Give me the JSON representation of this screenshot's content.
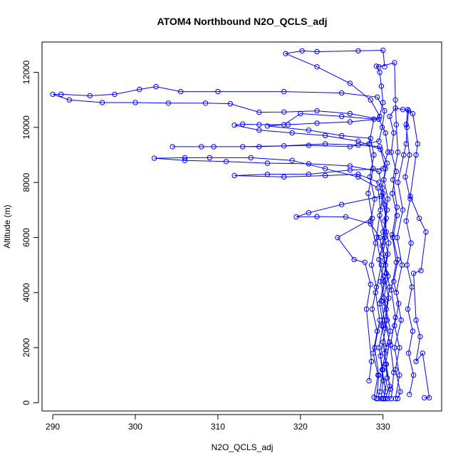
{
  "chart_data": {
    "type": "line",
    "title": "ATOM4 Northbound N2O_QCLS_adj",
    "xlabel": "N2O_QCLS_adj",
    "ylabel": "Altitude (m)",
    "xlim": [
      288.7,
      337.1
    ],
    "ylim": [
      -300,
      13100
    ],
    "x_ticks": [
      290,
      300,
      310,
      320,
      330
    ],
    "y_ticks": [
      0,
      2000,
      4000,
      6000,
      8000,
      10000,
      12000
    ],
    "grid": false,
    "legend": "none",
    "series_style": "points connected by lines",
    "color": "#0000ff",
    "series": [
      {
        "points": [
          [
            330.1,
            150
          ],
          [
            330.5,
            900
          ],
          [
            330.2,
            1800
          ],
          [
            330.9,
            2600
          ],
          [
            330.4,
            3400
          ],
          [
            330.8,
            4200
          ],
          [
            330.3,
            5000
          ],
          [
            330.7,
            5800
          ],
          [
            330.2,
            6600
          ],
          [
            330.6,
            7400
          ],
          [
            330.1,
            8100
          ],
          [
            330.5,
            8700
          ],
          [
            329.6,
            9300
          ],
          [
            327.0,
            9360
          ],
          [
            323.0,
            9400
          ],
          [
            318.0,
            9330
          ],
          [
            313.0,
            9300
          ],
          [
            308.0,
            9300
          ],
          [
            304.5,
            9300
          ],
          [
            309.5,
            9300
          ],
          [
            315.0,
            9300
          ],
          [
            321.0,
            9350
          ],
          [
            326.0,
            9300
          ],
          [
            329.5,
            9500
          ],
          [
            329.9,
            10000
          ],
          [
            330.2,
            10600
          ],
          [
            329.3,
            11100
          ],
          [
            325.0,
            11250
          ],
          [
            318.0,
            11300
          ],
          [
            310.0,
            11300
          ],
          [
            305.5,
            11300
          ],
          [
            302.5,
            11480
          ],
          [
            300.5,
            11380
          ],
          [
            297.5,
            11200
          ],
          [
            294.5,
            11150
          ],
          [
            291.0,
            11200
          ],
          [
            290.0,
            11200
          ],
          [
            292.0,
            11000
          ],
          [
            296.0,
            10900
          ],
          [
            300.0,
            10900
          ],
          [
            304.0,
            10880
          ],
          [
            308.5,
            10880
          ],
          [
            311.5,
            10860
          ],
          [
            315.0,
            10550
          ],
          [
            318.0,
            10560
          ],
          [
            322.0,
            10600
          ],
          [
            326.0,
            10500
          ],
          [
            329.5,
            10300
          ],
          [
            330.3,
            9800
          ],
          [
            330.6,
            9100
          ],
          [
            330.0,
            8500
          ],
          [
            326.0,
            8450
          ],
          [
            321.0,
            8300
          ],
          [
            316.0,
            8300
          ],
          [
            312.0,
            8250
          ],
          [
            318.0,
            8200
          ],
          [
            323.0,
            8250
          ],
          [
            327.0,
            8300
          ],
          [
            329.5,
            8000
          ],
          [
            330.2,
            7200
          ],
          [
            330.4,
            6200
          ],
          [
            330.0,
            5400
          ],
          [
            330.6,
            4600
          ],
          [
            330.1,
            3800
          ],
          [
            330.5,
            3000
          ],
          [
            330.0,
            2200
          ],
          [
            330.4,
            1400
          ],
          [
            330.8,
            600
          ],
          [
            330.3,
            150
          ]
        ]
      },
      {
        "points": [
          [
            329.2,
            150
          ],
          [
            329.5,
            1000
          ],
          [
            329.0,
            2000
          ],
          [
            329.6,
            3000
          ],
          [
            329.1,
            4000
          ],
          [
            329.8,
            5000
          ],
          [
            329.2,
            6000
          ],
          [
            329.7,
            7000
          ],
          [
            329.4,
            7800
          ],
          [
            327.0,
            8200
          ],
          [
            323.0,
            8500
          ],
          [
            319.0,
            8800
          ],
          [
            314.0,
            8900
          ],
          [
            309.0,
            8900
          ],
          [
            306.0,
            8900
          ],
          [
            302.3,
            8880
          ],
          [
            306.0,
            8800
          ],
          [
            311.0,
            8760
          ],
          [
            316.0,
            8700
          ],
          [
            321.0,
            8680
          ],
          [
            326.0,
            8600
          ],
          [
            329.5,
            8400
          ],
          [
            330.0,
            7600
          ],
          [
            329.6,
            6800
          ],
          [
            330.2,
            6000
          ],
          [
            329.5,
            5200
          ],
          [
            330.1,
            4400
          ],
          [
            329.6,
            3600
          ],
          [
            330.0,
            2800
          ],
          [
            329.5,
            2000
          ],
          [
            330.0,
            1200
          ],
          [
            329.6,
            400
          ],
          [
            329.4,
            150
          ]
        ]
      },
      {
        "points": [
          [
            331.0,
            150
          ],
          [
            331.3,
            1100
          ],
          [
            330.9,
            2100
          ],
          [
            331.5,
            3100
          ],
          [
            331.0,
            4100
          ],
          [
            331.6,
            5100
          ],
          [
            331.1,
            6100
          ],
          [
            331.7,
            7100
          ],
          [
            331.2,
            8100
          ],
          [
            331.8,
            9100
          ],
          [
            331.6,
            10100
          ],
          [
            331.5,
            11000
          ],
          [
            331.4,
            12350
          ],
          [
            329.5,
            12200
          ],
          [
            329.2,
            12220
          ],
          [
            329.6,
            12000
          ],
          [
            329.8,
            11500
          ],
          [
            330.0,
            10900
          ],
          [
            329.5,
            10300
          ],
          [
            326.0,
            10200
          ],
          [
            322.0,
            10150
          ],
          [
            318.5,
            10100
          ],
          [
            315.0,
            10100
          ],
          [
            313.0,
            10120
          ],
          [
            312.0,
            10080
          ],
          [
            315.0,
            9900
          ],
          [
            319.0,
            9800
          ],
          [
            323.0,
            9700
          ],
          [
            327.0,
            9500
          ],
          [
            329.7,
            9200
          ],
          [
            330.3,
            8500
          ],
          [
            329.9,
            7800
          ],
          [
            330.5,
            7000
          ],
          [
            330.0,
            6200
          ],
          [
            330.6,
            5400
          ],
          [
            330.1,
            4600
          ],
          [
            330.7,
            3800
          ],
          [
            330.2,
            3000
          ],
          [
            330.8,
            2200
          ],
          [
            330.3,
            1400
          ],
          [
            330.9,
            500
          ],
          [
            330.6,
            150
          ]
        ]
      },
      {
        "points": [
          [
            329.8,
            150
          ],
          [
            330.0,
            800
          ],
          [
            329.7,
            1700
          ],
          [
            330.3,
            2700
          ],
          [
            329.8,
            3700
          ],
          [
            330.4,
            4700
          ],
          [
            329.9,
            5700
          ],
          [
            330.4,
            6700
          ],
          [
            329.8,
            7500
          ],
          [
            325.0,
            7200
          ],
          [
            321.0,
            6900
          ],
          [
            319.5,
            6750
          ],
          [
            322.0,
            6760
          ],
          [
            325.5,
            6750
          ],
          [
            328.5,
            6500
          ],
          [
            329.6,
            6000
          ],
          [
            330.2,
            5200
          ],
          [
            329.7,
            4400
          ],
          [
            330.3,
            3600
          ],
          [
            329.8,
            2800
          ],
          [
            330.4,
            2000
          ],
          [
            329.9,
            1200
          ],
          [
            330.3,
            400
          ],
          [
            330.0,
            150
          ]
        ]
      },
      {
        "points": [
          [
            331.5,
            150
          ],
          [
            332.0,
            1000
          ],
          [
            331.4,
            2000
          ],
          [
            332.2,
            3000
          ],
          [
            331.6,
            4000
          ],
          [
            332.3,
            5000
          ],
          [
            331.7,
            6000
          ],
          [
            332.4,
            7000
          ],
          [
            331.8,
            8000
          ],
          [
            332.5,
            9000
          ],
          [
            332.8,
            9400
          ],
          [
            332.9,
            10000
          ],
          [
            333.1,
            10600
          ],
          [
            332.4,
            10650
          ],
          [
            331.5,
            10700
          ],
          [
            330.8,
            10400
          ],
          [
            331.3,
            9800
          ],
          [
            331.0,
            9100
          ],
          [
            331.6,
            8400
          ],
          [
            331.1,
            7600
          ],
          [
            331.7,
            6800
          ],
          [
            331.2,
            6000
          ],
          [
            331.8,
            5200
          ],
          [
            331.3,
            4400
          ],
          [
            331.9,
            3600
          ],
          [
            331.4,
            2800
          ],
          [
            332.0,
            2000
          ],
          [
            331.5,
            1200
          ],
          [
            332.1,
            400
          ],
          [
            331.8,
            150
          ]
        ]
      },
      {
        "points": [
          [
            335.0,
            180
          ],
          [
            335.6,
            180
          ],
          [
            334.8,
            1800
          ],
          [
            334.0,
            1500
          ],
          [
            334.5,
            2400
          ],
          [
            334.0,
            3000
          ],
          [
            333.7,
            4700
          ],
          [
            334.6,
            4800
          ],
          [
            335.2,
            6200
          ],
          [
            334.4,
            6700
          ],
          [
            333.3,
            7500
          ],
          [
            334.0,
            9000
          ],
          [
            334.2,
            9400
          ],
          [
            333.6,
            10500
          ],
          [
            333.0,
            10650
          ],
          [
            332.8,
            10100
          ],
          [
            333.2,
            9000
          ],
          [
            332.7,
            8200
          ],
          [
            333.3,
            7400
          ],
          [
            332.8,
            6600
          ],
          [
            333.4,
            5800
          ],
          [
            332.9,
            5000
          ],
          [
            333.5,
            4200
          ],
          [
            333.0,
            3400
          ],
          [
            333.6,
            2600
          ],
          [
            333.1,
            1800
          ],
          [
            333.7,
            1000
          ],
          [
            333.2,
            300
          ]
        ]
      },
      {
        "points": [
          [
            328.3,
            800
          ],
          [
            328.6,
            1500
          ],
          [
            328.0,
            3400
          ],
          [
            328.5,
            4300
          ],
          [
            327.8,
            5100
          ],
          [
            326.5,
            5200
          ],
          [
            324.5,
            6000
          ],
          [
            328.7,
            6700
          ],
          [
            328.2,
            7600
          ],
          [
            328.8,
            8500
          ],
          [
            328.3,
            9400
          ],
          [
            328.9,
            10300
          ],
          [
            325.0,
            10400
          ],
          [
            320.0,
            10500
          ],
          [
            318.0,
            10100
          ],
          [
            316.0,
            10050
          ],
          [
            321.0,
            9900
          ],
          [
            325.0,
            9700
          ],
          [
            328.5,
            9600
          ],
          [
            328.9,
            9000
          ],
          [
            328.4,
            8200
          ],
          [
            329.0,
            7400
          ],
          [
            328.5,
            6600
          ],
          [
            329.1,
            5800
          ],
          [
            328.6,
            5000
          ],
          [
            329.2,
            4200
          ],
          [
            328.7,
            3400
          ],
          [
            329.3,
            2600
          ],
          [
            328.8,
            1800
          ],
          [
            329.4,
            1000
          ],
          [
            328.9,
            200
          ]
        ]
      },
      {
        "points": [
          [
            330.2,
            12200
          ],
          [
            330.0,
            12800
          ],
          [
            327.0,
            12780
          ],
          [
            322.0,
            12750
          ],
          [
            320.2,
            12780
          ],
          [
            318.2,
            12680
          ],
          [
            322.0,
            12200
          ],
          [
            326.0,
            11600
          ],
          [
            328.5,
            11000
          ],
          [
            329.6,
            10400
          ]
        ]
      }
    ]
  }
}
